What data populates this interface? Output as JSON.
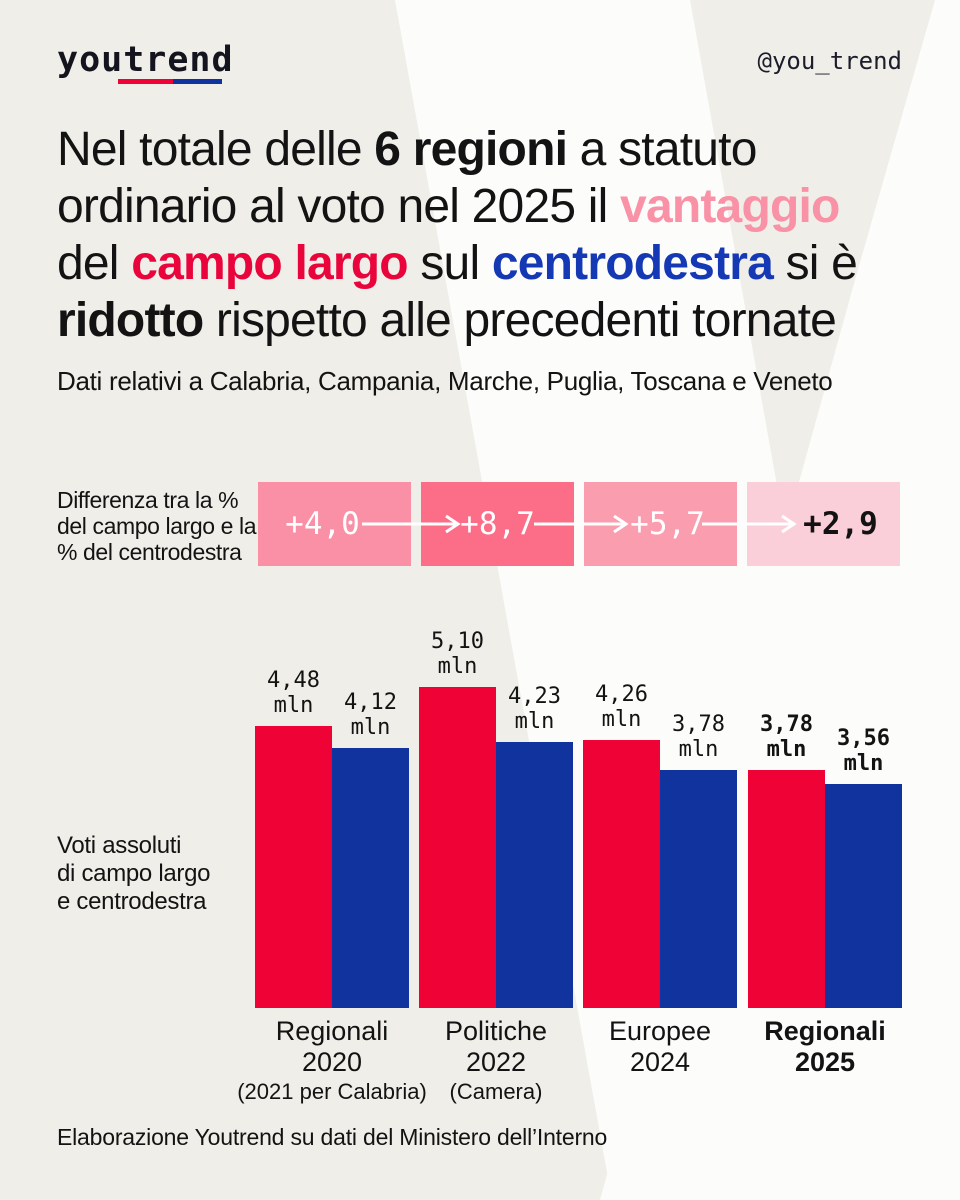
{
  "brand": {
    "logo": "youtrend",
    "handle": "@you_trend"
  },
  "colors": {
    "background": "#EFEEE9",
    "watermark": "#FCFCFA",
    "text": "#131313",
    "red": "#EF0235",
    "blue": "#10339E",
    "headline_pink": "#F992A6",
    "headline_red": "#E9053B",
    "headline_blue": "#1539B4",
    "box_pinks": [
      "#FA90A5",
      "#FC6E87",
      "#FA9DAE",
      "#FBCFD9"
    ],
    "white": "#FFFFFF"
  },
  "headline": {
    "lines": [
      [
        {
          "t": "Nel totale delle "
        },
        {
          "t": "6 regioni"
        },
        {
          "t": " a statuto"
        }
      ],
      [
        {
          "t": "ordinario al voto nel 2025 il "
        },
        {
          "t": "vantaggio"
        }
      ],
      [
        {
          "t": "del "
        },
        {
          "t": "campo largo"
        },
        {
          "t": " sul "
        },
        {
          "t": "centrodestra"
        },
        {
          "t": " si è"
        }
      ],
      [
        {
          "t": "ridotto"
        },
        {
          "t": " rispetto alle precedenti tornate"
        }
      ]
    ]
  },
  "subtitle": "Dati relativi a Calabria, Campania, Marche, Puglia, Toscana e Veneto",
  "diff_row": {
    "label_lines": [
      "Differenza tra la %",
      "del campo largo e la",
      "% del centrodestra"
    ],
    "box_styles": [
      {
        "bg": "#FA90A5",
        "text_color": "#FFFFFF",
        "bold": false
      },
      {
        "bg": "#FC6E87",
        "text_color": "#FFFFFF",
        "bold": false
      },
      {
        "bg": "#FA9DAE",
        "text_color": "#FFFFFF",
        "bold": false
      },
      {
        "bg": "#FBCFD9",
        "text_color": "#131313",
        "bold": true
      }
    ]
  },
  "chart_data": [
    {
      "type": "bar",
      "title": "Voti assoluti di campo largo e centrodestra",
      "unit": "mln",
      "categories": [
        [
          "Regionali",
          "2020",
          "(2021 per Calabria)"
        ],
        [
          "Politiche",
          "2022",
          "(Camera)"
        ],
        [
          "Europee",
          "2024"
        ],
        [
          "Regionali",
          "2025"
        ]
      ],
      "series": [
        {
          "name": "campo largo",
          "color_key": "red",
          "values": [
            4.48,
            5.1,
            4.26,
            3.78
          ],
          "labels": [
            "4,48",
            "5,10",
            "4,26",
            "3,78"
          ]
        },
        {
          "name": "centrodestra",
          "color_key": "blue",
          "values": [
            4.12,
            4.23,
            3.78,
            3.56
          ],
          "labels": [
            "4,12",
            "4,23",
            "3,78",
            "3,56"
          ]
        }
      ],
      "emphasized_group": 3,
      "ylabel_lines": [
        "Voti assoluti",
        "di campo largo",
        "e centrodestra"
      ],
      "ylim": [
        0,
        5.5
      ],
      "grid": false,
      "legend": "none"
    },
    {
      "type": "sequence",
      "title": "Differenza tra la % del campo largo e la % del centrodestra",
      "values": [
        "+4,0",
        "+8,7",
        "+5,7",
        "+2,9"
      ],
      "numeric_values": [
        4.0,
        8.7,
        5.7,
        2.9
      ],
      "emphasized_index": 3
    }
  ],
  "footer": "Elaborazione Youtrend su dati del Ministero dell’Interno"
}
